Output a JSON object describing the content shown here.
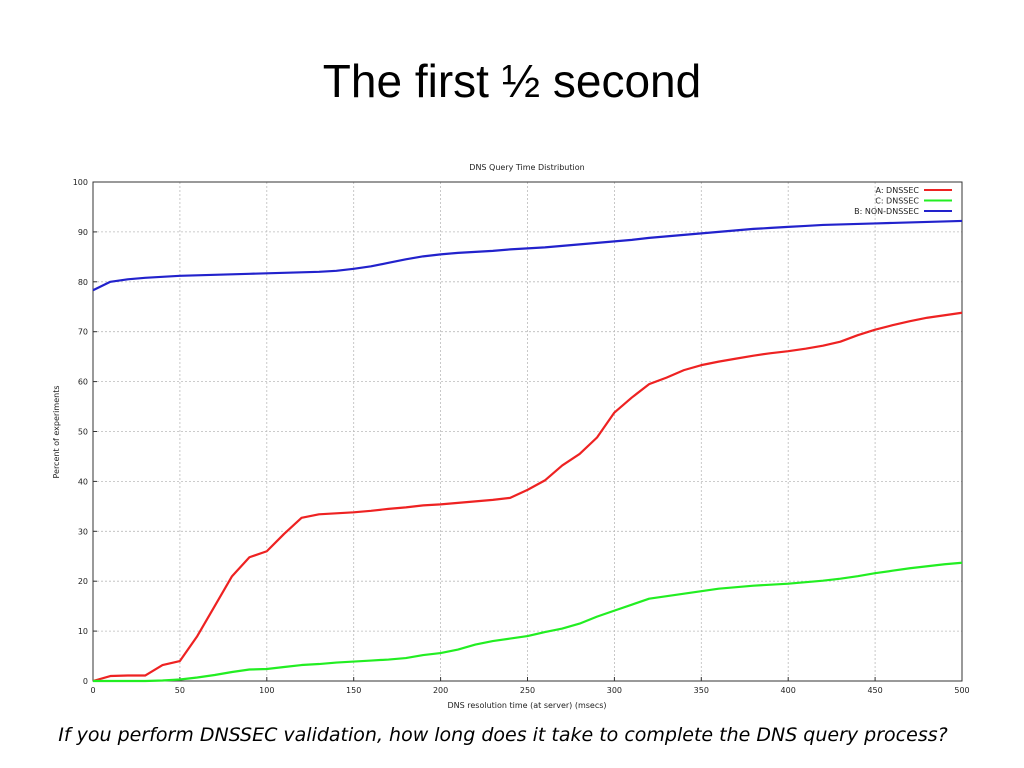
{
  "slide": {
    "title": "The first ½ second",
    "caption": "If you perform DNSSEC validation, how long does it take to complete the DNS query process?"
  },
  "chart_data": {
    "type": "line",
    "title": "DNS Query Time Distribution",
    "x_label": "DNS resolution time (at server) (msecs)",
    "y_label": "Percent of experiments",
    "x": [
      0,
      10,
      20,
      30,
      40,
      50,
      60,
      70,
      80,
      90,
      100,
      110,
      120,
      130,
      140,
      150,
      160,
      170,
      180,
      190,
      200,
      210,
      220,
      230,
      240,
      250,
      260,
      270,
      280,
      290,
      300,
      310,
      320,
      330,
      340,
      350,
      360,
      370,
      380,
      390,
      400,
      410,
      420,
      430,
      440,
      450,
      460,
      470,
      480,
      490,
      500
    ],
    "series": [
      {
        "name": "A: DNSSEC",
        "color": "#ee2222",
        "values": [
          0,
          1,
          1.1,
          1.1,
          3.2,
          4,
          9,
          15,
          21,
          24.8,
          26,
          29.5,
          32.7,
          33.4,
          33.6,
          33.8,
          34.1,
          34.5,
          34.8,
          35.2,
          35.4,
          35.7,
          36,
          36.3,
          36.7,
          38.3,
          40.2,
          43.2,
          45.5,
          48.8,
          53.8,
          56.8,
          59.5,
          60.8,
          62.3,
          63.3,
          64,
          64.6,
          65.2,
          65.7,
          66.1,
          66.6,
          67.2,
          68,
          69.3,
          70.4,
          71.3,
          72.1,
          72.8,
          73.3,
          73.8
        ]
      },
      {
        "name": "C: DNSSEC",
        "color": "#22ee22",
        "values": [
          0,
          0,
          0,
          0,
          0.1,
          0.3,
          0.7,
          1.2,
          1.8,
          2.3,
          2.4,
          2.8,
          3.2,
          3.4,
          3.7,
          3.9,
          4.1,
          4.3,
          4.6,
          5.2,
          5.6,
          6.3,
          7.3,
          8,
          8.5,
          9,
          9.8,
          10.5,
          11.5,
          12.9,
          14.1,
          15.3,
          16.5,
          17,
          17.5,
          18,
          18.5,
          18.8,
          19.1,
          19.3,
          19.5,
          19.8,
          20.1,
          20.5,
          21,
          21.6,
          22.1,
          22.6,
          23,
          23.4,
          23.7
        ]
      },
      {
        "name": "B: NON-DNSSEC",
        "color": "#2222cc",
        "values": [
          78.3,
          80,
          80.5,
          80.8,
          81,
          81.2,
          81.3,
          81.4,
          81.5,
          81.6,
          81.7,
          81.8,
          81.9,
          82,
          82.2,
          82.6,
          83.1,
          83.8,
          84.5,
          85.1,
          85.5,
          85.8,
          86,
          86.2,
          86.5,
          86.7,
          86.9,
          87.2,
          87.5,
          87.8,
          88.1,
          88.4,
          88.8,
          89.1,
          89.4,
          89.7,
          90,
          90.3,
          90.6,
          90.8,
          91,
          91.2,
          91.4,
          91.5,
          91.6,
          91.7,
          91.8,
          91.9,
          92,
          92.1,
          92.2
        ]
      }
    ],
    "xlim": [
      0,
      500
    ],
    "ylim": [
      0,
      100
    ],
    "xticks": [
      0,
      50,
      100,
      150,
      200,
      250,
      300,
      350,
      400,
      450,
      500
    ],
    "yticks": [
      0,
      10,
      20,
      30,
      40,
      50,
      60,
      70,
      80,
      90,
      100
    ],
    "grid": true,
    "legend": "top-right"
  }
}
